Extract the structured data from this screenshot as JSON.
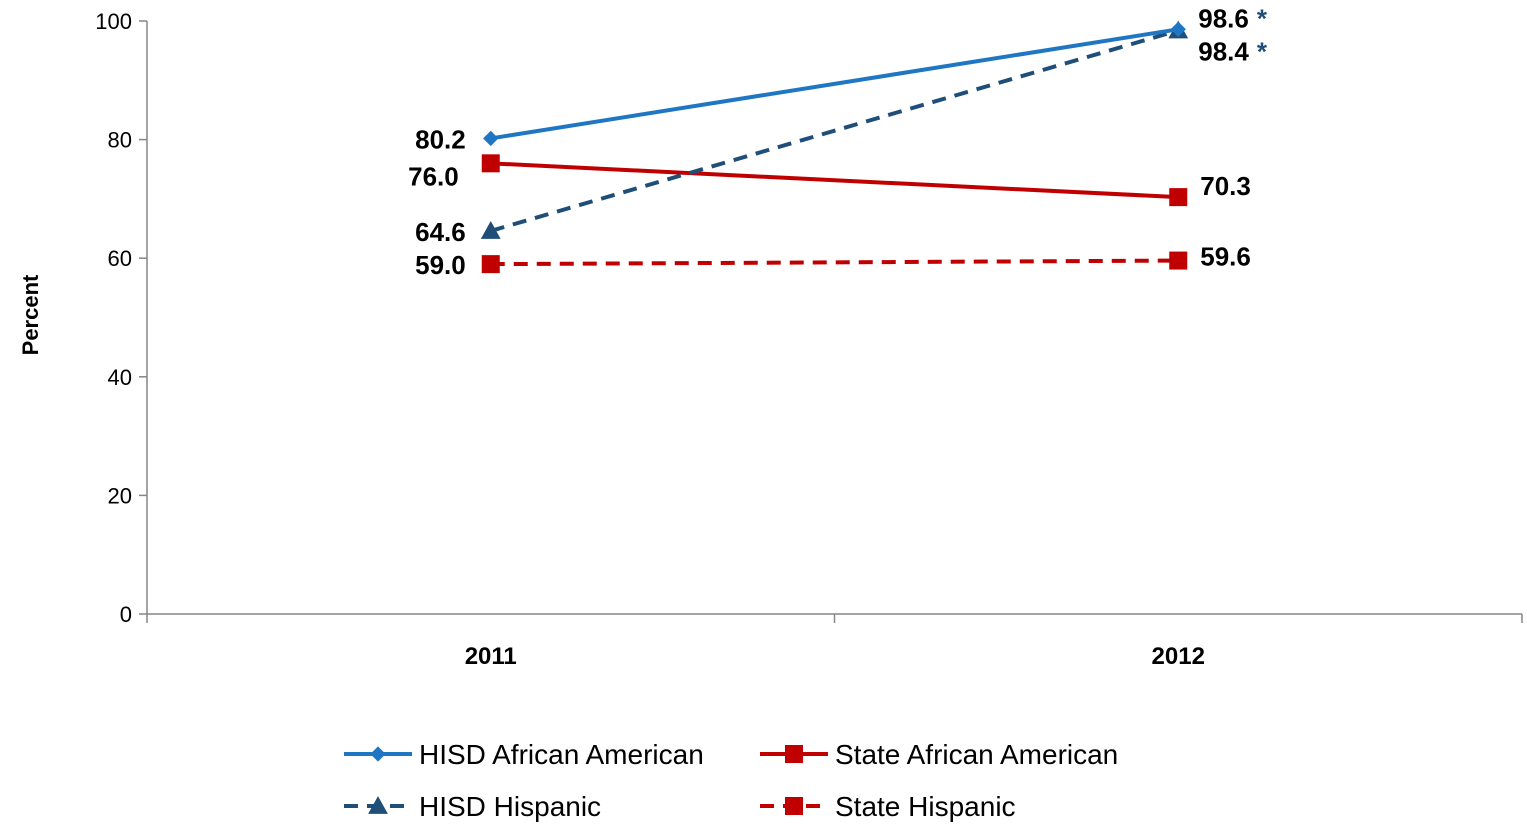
{
  "chart_data": {
    "type": "line",
    "title": "",
    "xlabel": "",
    "ylabel": "Percent",
    "categories": [
      "2011",
      "2012"
    ],
    "ylim": [
      0,
      100
    ],
    "yticks": [
      "0",
      "20",
      "40",
      "60",
      "80",
      "100"
    ],
    "grid": false,
    "legend_position": "bottom",
    "series": [
      {
        "name": "HISD African American",
        "values": [
          80.2,
          98.6
        ],
        "labels": [
          "80.2",
          "98.6"
        ],
        "color": "#1f77c4",
        "dash": "solid",
        "marker": "diamond",
        "flags": [
          "",
          "*"
        ]
      },
      {
        "name": "State African American",
        "values": [
          76.0,
          70.3
        ],
        "labels": [
          "76.0",
          "70.3"
        ],
        "color": "#c00000",
        "dash": "solid",
        "marker": "square",
        "flags": [
          "",
          ""
        ]
      },
      {
        "name": "HISD Hispanic",
        "values": [
          64.6,
          98.4
        ],
        "labels": [
          "64.6",
          "98.4"
        ],
        "color": "#1f4e79",
        "dash": "dashed",
        "marker": "triangle",
        "flags": [
          "",
          "*"
        ]
      },
      {
        "name": "State Hispanic",
        "values": [
          59.0,
          59.6
        ],
        "labels": [
          "59.0",
          "59.6"
        ],
        "color": "#c00000",
        "dash": "dashed",
        "marker": "square",
        "flags": [
          "",
          ""
        ]
      }
    ]
  }
}
